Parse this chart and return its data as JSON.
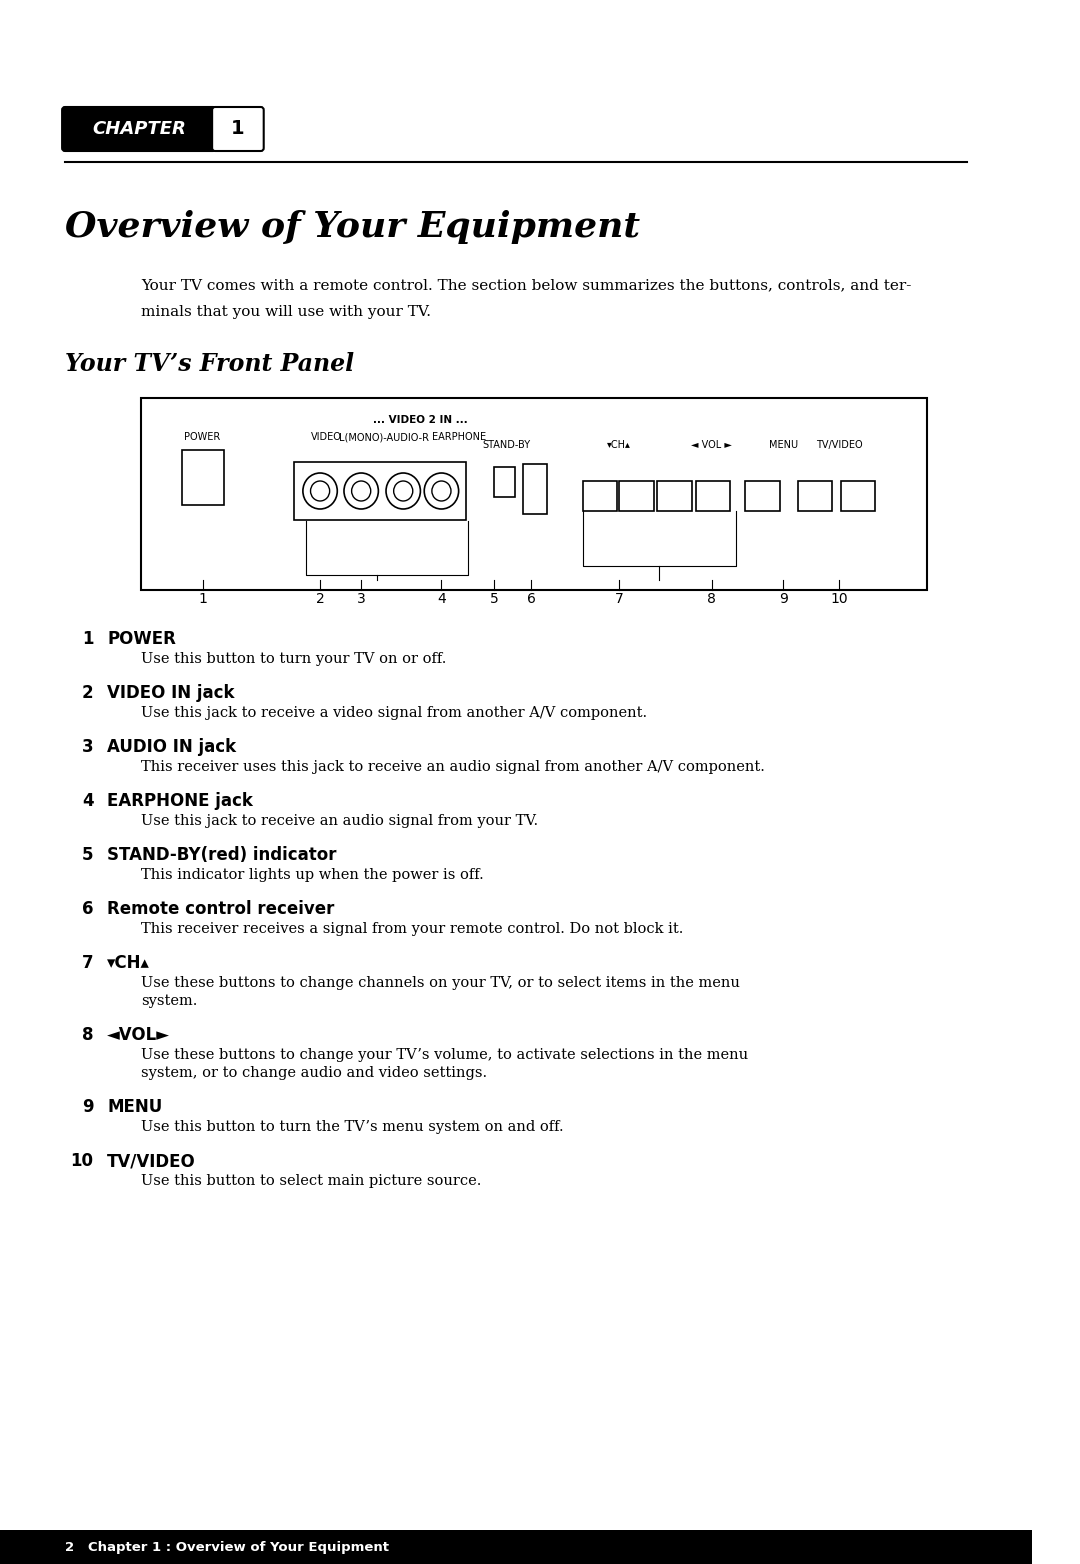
{
  "bg_color": "#ffffff",
  "chapter_label": "CHAPTER",
  "chapter_num": "1",
  "main_title": "Overview of Your Equipment",
  "intro_text": "Your TV comes with a remote control. The section below summarizes the buttons, controls, and ter-\nminals that you will use with your TV.",
  "section_title": "Your TV’s Front Panel",
  "items": [
    {
      "num": "1",
      "title": "POWER",
      "desc": "Use this button to turn your TV on or off."
    },
    {
      "num": "2",
      "title": "VIDEO IN jack",
      "desc": "Use this jack to receive a video signal from another A/V component."
    },
    {
      "num": "3",
      "title": "AUDIO IN jack",
      "desc": "This receiver uses this jack to receive an audio signal from another A/V component."
    },
    {
      "num": "4",
      "title": "EARPHONE jack",
      "desc": "Use this jack to receive an audio signal from your TV."
    },
    {
      "num": "5",
      "title": "STAND-BY(red) indicator",
      "desc": "This indicator lights up when the power is off."
    },
    {
      "num": "6",
      "title": "Remote control receiver",
      "desc": "This receiver receives a signal from your remote control. Do not block it."
    },
    {
      "num": "7",
      "title": "▾CH▴",
      "desc": "Use these buttons to change channels on your TV, or to select items in the menu\nsystem."
    },
    {
      "num": "8",
      "title": "◄VOL►",
      "desc": "Use these buttons to change your TV’s volume, to activate selections in the menu\nsystem, or to change audio and video settings."
    },
    {
      "num": "9",
      "title": "MENU",
      "desc": "Use this button to turn the TV’s menu system on and off."
    },
    {
      "num": "10",
      "title": "TV/VIDEO",
      "desc": "Use this button to select main picture source."
    }
  ],
  "footer_text": "2   Chapter 1 : Overview of Your Equipment"
}
